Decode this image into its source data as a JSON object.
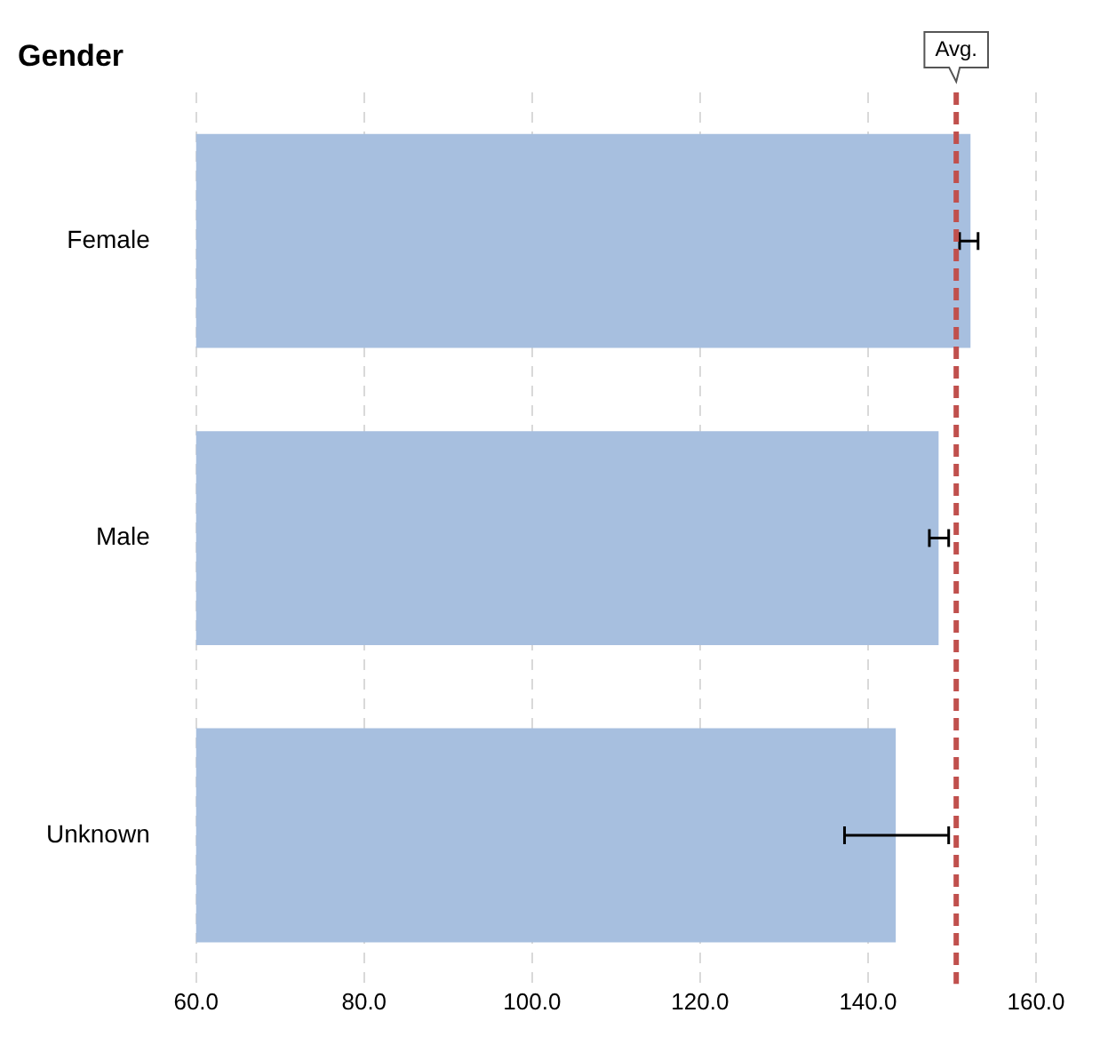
{
  "chart_data": {
    "type": "bar",
    "orientation": "horizontal",
    "title": "Gender",
    "categories": [
      "Female",
      "Male",
      "Unknown"
    ],
    "values": [
      152.2,
      148.4,
      143.3
    ],
    "color": "#a7bfdf",
    "errors": [
      [
        150.9,
        153.1
      ],
      [
        147.3,
        149.6
      ],
      [
        137.2,
        149.6
      ]
    ],
    "xlim": [
      60,
      160
    ],
    "xticks": [
      {
        "value": 60,
        "label": "60.0"
      },
      {
        "value": 80,
        "label": "80.0"
      },
      {
        "value": 100,
        "label": "100.0"
      },
      {
        "value": 120,
        "label": "120.0"
      },
      {
        "value": 140,
        "label": "140.0"
      },
      {
        "value": 160,
        "label": "160.0"
      }
    ],
    "ref_lines": [
      {
        "axis": "x",
        "value": 150.5,
        "label": "Avg.",
        "color": "#c0504d",
        "line_style": "dashed"
      }
    ],
    "grid": "x",
    "legend": false
  }
}
